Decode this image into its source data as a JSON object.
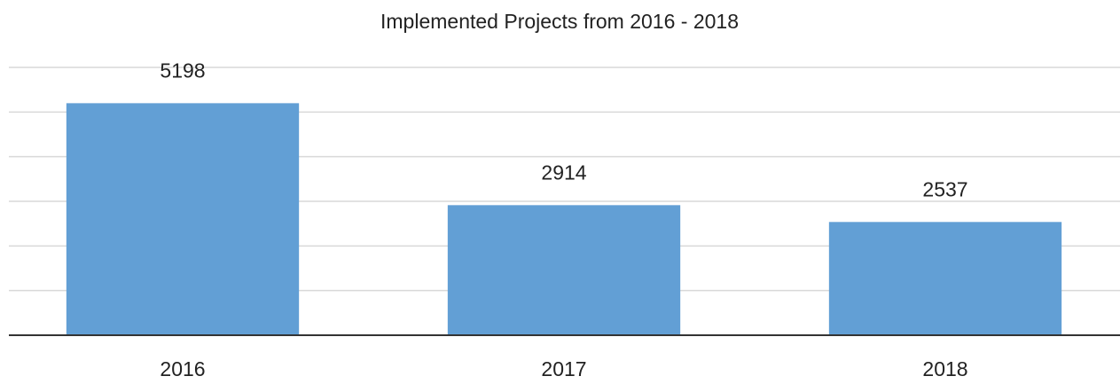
{
  "chart_data": {
    "type": "bar",
    "title": "Implemented Projects from 2016 - 2018",
    "categories": [
      "2016",
      "2017",
      "2018"
    ],
    "values": [
      5198,
      2914,
      2537
    ],
    "color": "#629fd5",
    "ylim": [
      0,
      6000
    ],
    "yticks": [
      0,
      1000,
      2000,
      3000,
      4000,
      5000,
      6000
    ],
    "grid": true
  }
}
